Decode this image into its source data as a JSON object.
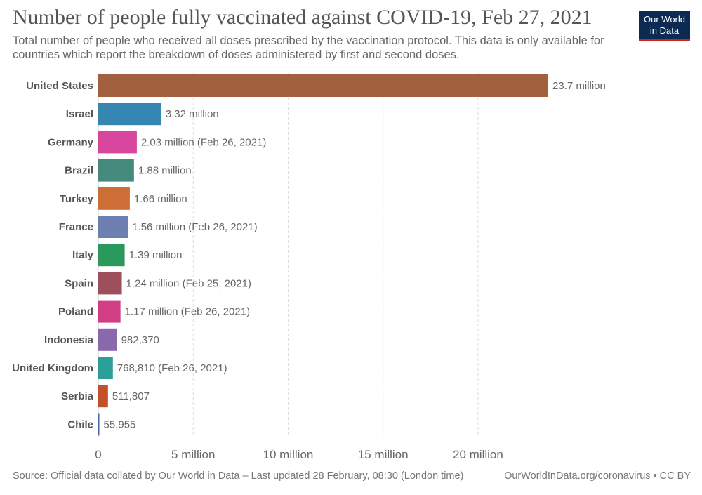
{
  "header": {
    "title": "Number of people fully vaccinated against COVID-19, Feb 27, 2021",
    "subtitle": "Total number of people who received all doses prescribed by the vaccination protocol. This data is only available for countries which report the breakdown of doses administered by first and second doses.",
    "logo_line1": "Our World",
    "logo_line2": "in Data"
  },
  "footer": {
    "source": "Source: Official data collated by Our World in Data – Last updated 28 February, 08:30 (London time)",
    "credit": "OurWorldInData.org/coronavirus • CC BY"
  },
  "chart_data": {
    "type": "bar",
    "orientation": "horizontal",
    "xlim": [
      0,
      23700000
    ],
    "x_ticks": [
      {
        "value": 0,
        "label": "0"
      },
      {
        "value": 5000000,
        "label": "5 million"
      },
      {
        "value": 10000000,
        "label": "10 million"
      },
      {
        "value": 15000000,
        "label": "15 million"
      },
      {
        "value": 20000000,
        "label": "20 million"
      }
    ],
    "grid": "vertical dashed",
    "bars": [
      {
        "category": "United States",
        "value": 23700000,
        "label": "23.7 million",
        "color": "#a2603f"
      },
      {
        "category": "Israel",
        "value": 3320000,
        "label": "3.32 million",
        "color": "#3586b2"
      },
      {
        "category": "Germany",
        "value": 2030000,
        "label": "2.03 million (Feb 26, 2021)",
        "color": "#d7459c"
      },
      {
        "category": "Brazil",
        "value": 1880000,
        "label": "1.88 million",
        "color": "#458a7c"
      },
      {
        "category": "Turkey",
        "value": 1660000,
        "label": "1.66 million",
        "color": "#cc6e36"
      },
      {
        "category": "France",
        "value": 1560000,
        "label": "1.56 million (Feb 26, 2021)",
        "color": "#6b7fb0"
      },
      {
        "category": "Italy",
        "value": 1390000,
        "label": "1.39 million",
        "color": "#299a5b"
      },
      {
        "category": "Spain",
        "value": 1240000,
        "label": "1.24 million (Feb 25, 2021)",
        "color": "#9e4f5c"
      },
      {
        "category": "Poland",
        "value": 1170000,
        "label": "1.17 million (Feb 26, 2021)",
        "color": "#d23e86"
      },
      {
        "category": "Indonesia",
        "value": 982370,
        "label": "982,370",
        "color": "#8a68ad"
      },
      {
        "category": "United Kingdom",
        "value": 768810,
        "label": "768,810 (Feb 26, 2021)",
        "color": "#2a9e97"
      },
      {
        "category": "Serbia",
        "value": 511807,
        "label": "511,807",
        "color": "#c2512a"
      },
      {
        "category": "Chile",
        "value": 55955,
        "label": "55,955",
        "color": "#4c6a9c"
      }
    ]
  }
}
